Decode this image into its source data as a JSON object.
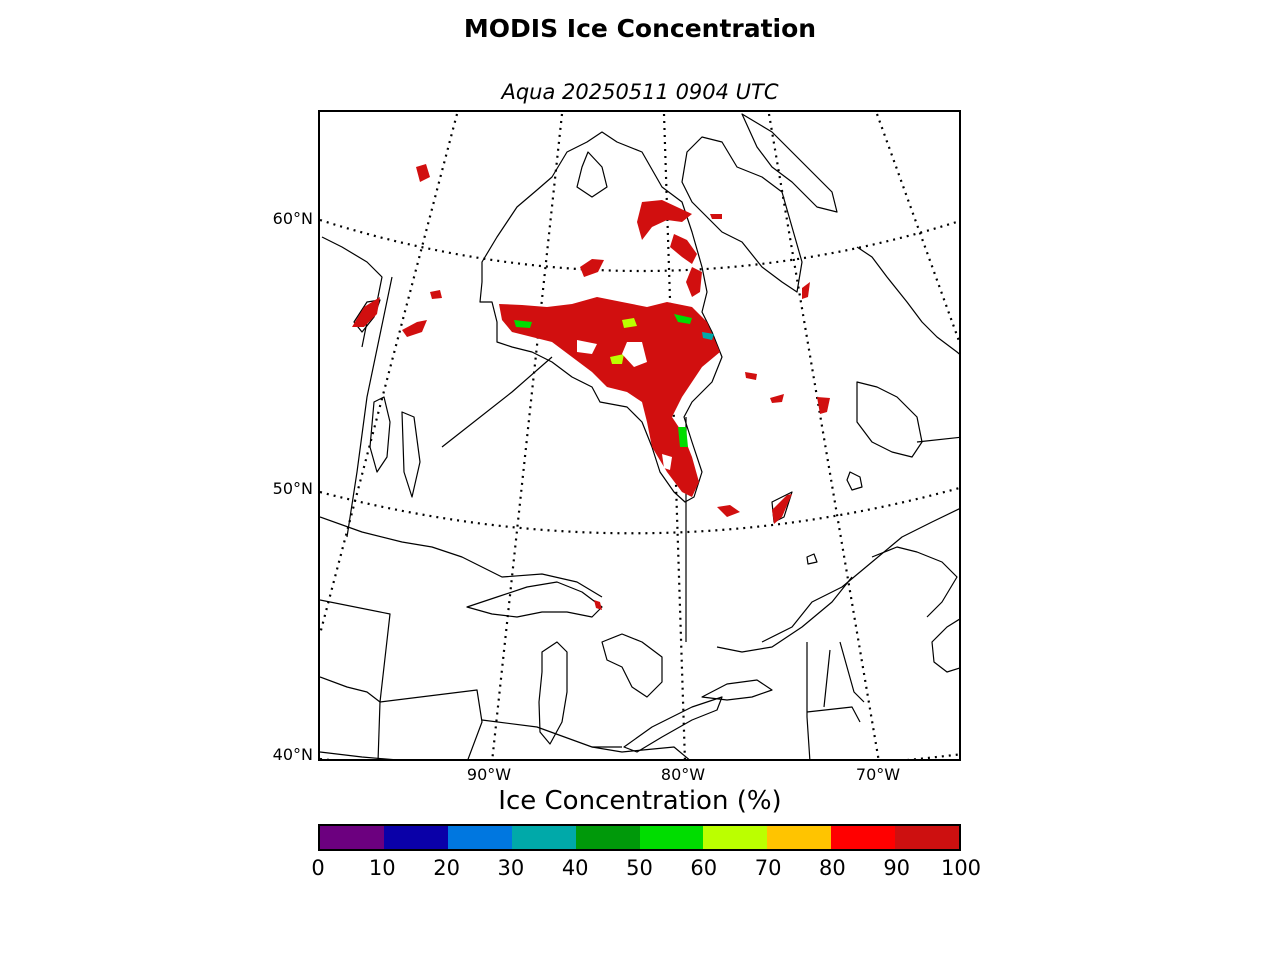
{
  "title": "MODIS Ice Concentration",
  "subtitle": "Aqua 20250511 0904 UTC",
  "map": {
    "lat_labels": [
      "60°N",
      "50°N",
      "40°N"
    ],
    "lon_labels": [
      "90°W",
      "80°W",
      "70°W"
    ],
    "ice_color": "#d10f0f",
    "coastline_color": "#000000"
  },
  "colorbar": {
    "title": "Ice Concentration (%)",
    "ticks": [
      "0",
      "10",
      "20",
      "30",
      "40",
      "50",
      "60",
      "70",
      "80",
      "90",
      "100"
    ],
    "colors": [
      "#6c007f",
      "#0a00a8",
      "#0077e0",
      "#00a9a9",
      "#00990a",
      "#00dd00",
      "#bbff00",
      "#ffc400",
      "#ff0000",
      "#cd1010"
    ]
  }
}
